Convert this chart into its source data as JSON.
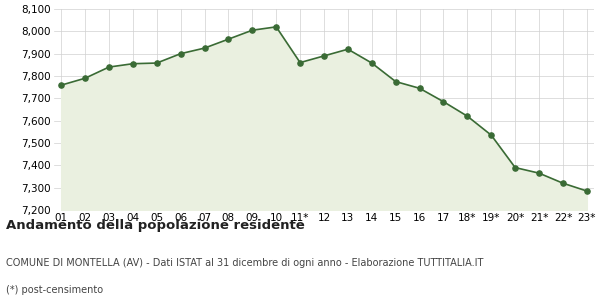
{
  "x_labels": [
    "01",
    "02",
    "03",
    "04",
    "05",
    "06",
    "07",
    "08",
    "09",
    "10",
    "11*",
    "12",
    "13",
    "14",
    "15",
    "16",
    "17",
    "18*",
    "19*",
    "20*",
    "21*",
    "22*",
    "23*"
  ],
  "values": [
    7759,
    7790,
    7840,
    7855,
    7858,
    7900,
    7925,
    7965,
    8005,
    8020,
    7860,
    7890,
    7920,
    7858,
    7775,
    7745,
    7685,
    7620,
    7535,
    7390,
    7365,
    7320,
    7285
  ],
  "line_color": "#3a6b35",
  "fill_color": "#eaf0e0",
  "marker_color": "#3a6b35",
  "bg_color": "#ffffff",
  "grid_color": "#d0d0d0",
  "ylim": [
    7200,
    8100
  ],
  "yticks": [
    7200,
    7300,
    7400,
    7500,
    7600,
    7700,
    7800,
    7900,
    8000,
    8100
  ],
  "title": "Andamento della popolazione residente",
  "subtitle": "COMUNE DI MONTELLA (AV) - Dati ISTAT al 31 dicembre di ogni anno - Elaborazione TUTTITALIA.IT",
  "footnote": "(*) post-censimento",
  "title_fontsize": 9.5,
  "subtitle_fontsize": 7.0,
  "footnote_fontsize": 7.0
}
